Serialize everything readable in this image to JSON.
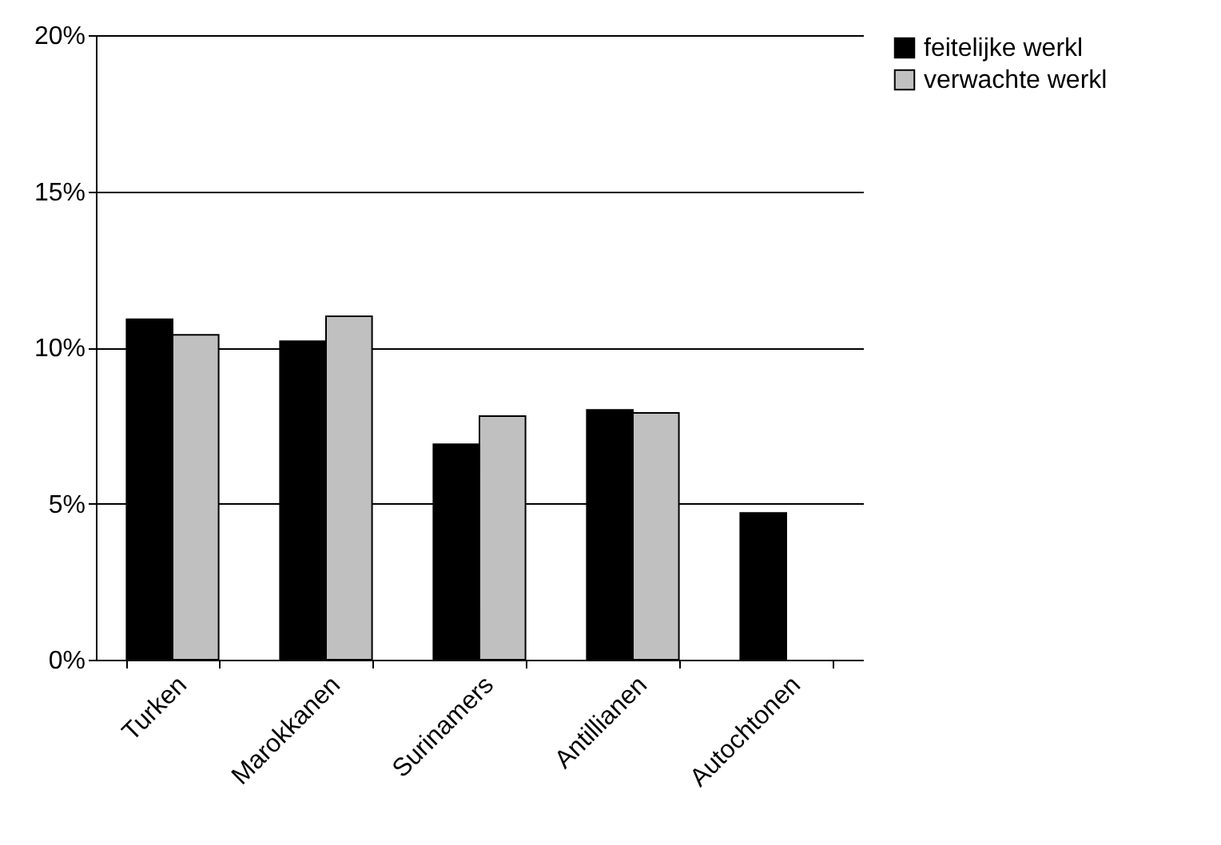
{
  "chart_data": {
    "type": "bar",
    "categories": [
      "Turken",
      "Marokkanen",
      "Surinamers",
      "Antillianen",
      "Autochtonen"
    ],
    "series": [
      {
        "name": "feitelijke werkl",
        "color": "#000000",
        "values": [
          10.9,
          10.2,
          6.9,
          8.0,
          4.7
        ]
      },
      {
        "name": "verwachte werkl",
        "color": "#c0c0c0",
        "values": [
          10.4,
          11.0,
          7.8,
          7.9,
          null
        ]
      }
    ],
    "ylim": [
      0,
      20
    ],
    "yticks": [
      {
        "value": 0,
        "label": "0%"
      },
      {
        "value": 5,
        "label": "5%"
      },
      {
        "value": 10,
        "label": "10%"
      },
      {
        "value": 15,
        "label": "15%"
      },
      {
        "value": 20,
        "label": "20%"
      }
    ],
    "grid": "y",
    "legend": "right"
  }
}
